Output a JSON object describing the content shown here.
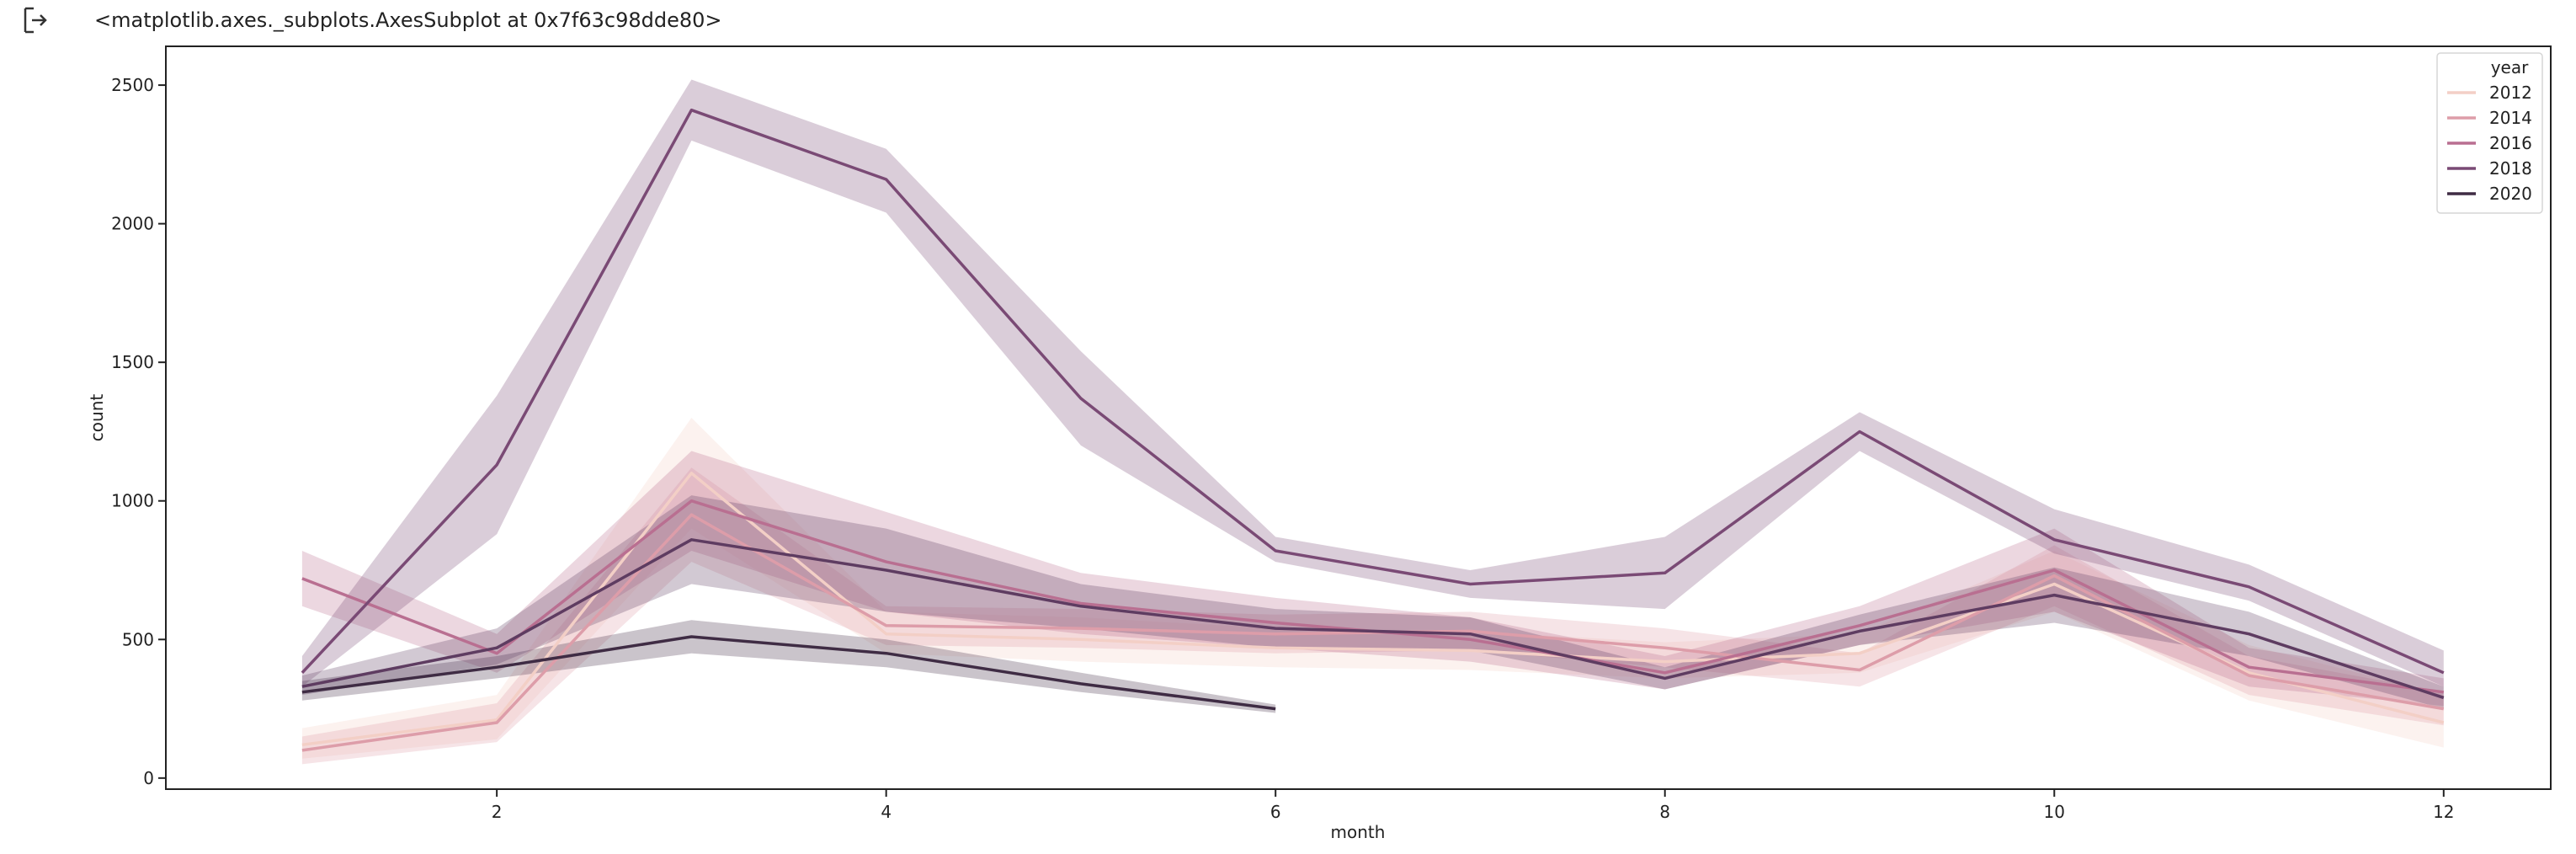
{
  "output": {
    "repr_text": "<matplotlib.axes._subplots.AxesSubplot at 0x7f63c98dde80>",
    "icon": "output-arrow-icon"
  },
  "chart_data": {
    "type": "line",
    "xlabel": "month",
    "ylabel": "count",
    "xlim": [
      0.3,
      12.55
    ],
    "ylim": [
      -40,
      2640
    ],
    "xticks": [
      2,
      4,
      6,
      8,
      10,
      12
    ],
    "yticks": [
      0,
      500,
      1000,
      1500,
      2000,
      2500
    ],
    "grid": false,
    "legend": {
      "title": "year",
      "placement": "top-right"
    },
    "series": [
      {
        "name": "2012",
        "color": "#f3cfc6",
        "x": [
          1,
          2,
          3,
          4,
          5,
          6,
          7,
          8,
          9,
          10,
          11,
          12
        ],
        "values": [
          120,
          210,
          1100,
          520,
          500,
          470,
          460,
          420,
          450,
          700,
          380,
          200
        ],
        "lower": [
          70,
          140,
          900,
          450,
          420,
          400,
          390,
          360,
          380,
          600,
          280,
          110
        ],
        "upper": [
          180,
          300,
          1300,
          600,
          580,
          540,
          530,
          490,
          520,
          820,
          480,
          300
        ]
      },
      {
        "name": "2014",
        "color": "#dd9da9",
        "x": [
          1,
          2,
          3,
          4,
          5,
          6,
          7,
          8,
          9,
          10,
          11,
          12
        ],
        "values": [
          100,
          200,
          950,
          550,
          540,
          520,
          530,
          470,
          390,
          730,
          370,
          250
        ],
        "lower": [
          50,
          130,
          780,
          480,
          470,
          450,
          460,
          400,
          330,
          620,
          300,
          190
        ],
        "upper": [
          150,
          270,
          1120,
          620,
          610,
          590,
          600,
          540,
          450,
          840,
          440,
          310
        ]
      },
      {
        "name": "2016",
        "color": "#b96f91",
        "x": [
          1,
          2,
          3,
          4,
          5,
          6,
          7,
          8,
          9,
          10,
          11,
          12
        ],
        "values": [
          720,
          450,
          1000,
          780,
          630,
          560,
          500,
          380,
          550,
          750,
          400,
          310
        ],
        "lower": [
          620,
          380,
          820,
          600,
          520,
          470,
          420,
          320,
          480,
          600,
          330,
          260
        ],
        "upper": [
          820,
          520,
          1180,
          960,
          740,
          650,
          580,
          440,
          620,
          900,
          470,
          360
        ]
      },
      {
        "name": "2018",
        "color": "#7a4a75",
        "x": [
          1,
          2,
          3,
          4,
          5,
          6,
          7,
          8,
          9,
          10,
          11,
          12
        ],
        "values": [
          380,
          1130,
          2410,
          2160,
          1370,
          820,
          700,
          740,
          1250,
          860,
          690,
          380
        ],
        "lower": [
          330,
          880,
          2300,
          2040,
          1200,
          780,
          650,
          610,
          1180,
          810,
          640,
          330
        ],
        "upper": [
          440,
          1380,
          2520,
          2270,
          1540,
          870,
          750,
          870,
          1320,
          970,
          770,
          460
        ]
      },
      {
        "name": "2020",
        "color": "#3f2c44",
        "x": [
          1,
          2,
          3,
          4,
          5,
          6
        ],
        "values": [
          310,
          400,
          510,
          450,
          340,
          250
        ],
        "lower": [
          280,
          360,
          450,
          400,
          310,
          235
        ],
        "upper": [
          350,
          440,
          570,
          500,
          380,
          265
        ]
      },
      {
        "color": "#5e3c61",
        "x": [
          1,
          2,
          3,
          4,
          5,
          6,
          7,
          8,
          9,
          10,
          11,
          12
        ],
        "values": [
          330,
          470,
          860,
          750,
          620,
          540,
          520,
          360,
          530,
          660,
          520,
          290
        ],
        "lower": [
          300,
          410,
          700,
          600,
          540,
          470,
          460,
          320,
          480,
          560,
          440,
          250
        ],
        "upper": [
          370,
          540,
          1020,
          900,
          700,
          610,
          580,
          400,
          590,
          760,
          600,
          330
        ]
      }
    ]
  }
}
